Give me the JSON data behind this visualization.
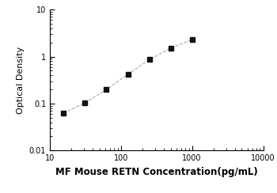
{
  "x": [
    15.625,
    31.25,
    62.5,
    125,
    250,
    500,
    1000
  ],
  "y": [
    0.063,
    0.104,
    0.2,
    0.42,
    0.86,
    1.52,
    2.3
  ],
  "xlabel": "MF Mouse RETN Concentration(pg/mL)",
  "ylabel": "Optical Density",
  "xlim": [
    10,
    10000
  ],
  "ylim": [
    0.01,
    10
  ],
  "line_color": "#aaaaaa",
  "marker_color": "#111111",
  "marker": "s",
  "marker_size": 4,
  "line_style": "--",
  "line_width": 0.8,
  "background_color": "#ffffff",
  "xlabel_fontsize": 8.5,
  "ylabel_fontsize": 8,
  "tick_fontsize": 7,
  "xlabel_fontweight": "bold"
}
